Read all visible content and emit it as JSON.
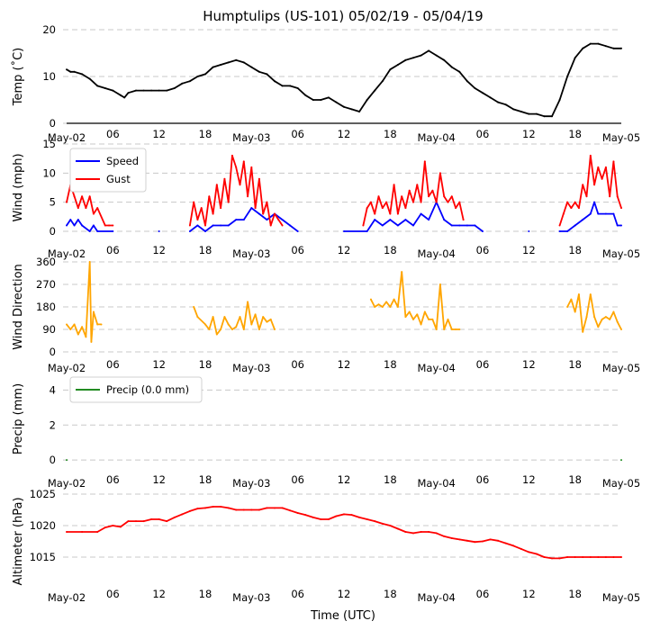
{
  "figure": {
    "title": "Humptulips (US-101) 05/02/19 - 05/04/19",
    "xlabel": "Time (UTC)"
  },
  "chart_data": [
    {
      "type": "line",
      "id": "temp",
      "ylabel": "Temp ($^\\circ$C)",
      "ylabel_display": "Temp (˚C)",
      "ylim": [
        0,
        20
      ],
      "yticks": [
        0,
        10,
        20
      ],
      "ytick_labels": [
        "0",
        "10",
        "20"
      ],
      "xlim_hours": [
        0,
        72
      ],
      "xticks_hours": [
        0,
        6,
        12,
        18,
        24,
        30,
        36,
        42,
        48,
        54,
        60,
        66,
        72
      ],
      "xtick_labels": [
        "May-02",
        "06",
        "12",
        "18",
        "May-03",
        "06",
        "12",
        "18",
        "May-04",
        "06",
        "12",
        "18",
        "May-05"
      ],
      "grid": true,
      "series": [
        {
          "name": "Temp",
          "color": "#000000",
          "x_hours": [
            0,
            0.5,
            1,
            2,
            3,
            4,
            5,
            6,
            7,
            7.5,
            8,
            9,
            10,
            11,
            12,
            13,
            14,
            15,
            16,
            17,
            18,
            19,
            20,
            21,
            22,
            23,
            24,
            25,
            26,
            27,
            28,
            29,
            30,
            31,
            32,
            33,
            34,
            35,
            36,
            37,
            38,
            39,
            40,
            41,
            42,
            43,
            44,
            45,
            46,
            47,
            48,
            49,
            50,
            51,
            52,
            53,
            54,
            55,
            56,
            57,
            58,
            59,
            60,
            61,
            62,
            63,
            64,
            65,
            66,
            67,
            68,
            69,
            70,
            71,
            72
          ],
          "values": [
            11.5,
            11,
            11,
            10.5,
            9.5,
            8,
            7.5,
            7,
            6,
            5.5,
            6.5,
            7,
            7,
            7,
            7,
            7,
            7.5,
            8.5,
            9,
            10,
            10.5,
            12,
            12.5,
            13,
            13.5,
            13,
            12,
            11,
            10.5,
            9,
            8,
            8,
            7.5,
            6,
            5,
            5,
            5.5,
            4.5,
            3.5,
            3,
            2.5,
            5,
            7,
            9,
            11.5,
            12.5,
            13.5,
            14,
            14.5,
            15.5,
            14.5,
            13.5,
            12,
            11,
            9,
            7.5,
            6.5,
            5.5,
            4.5,
            4,
            3,
            2.5,
            2,
            2,
            1.5,
            1.5,
            5,
            10,
            14,
            16,
            17,
            17,
            16.5,
            16,
            16
          ]
        }
      ]
    },
    {
      "type": "line",
      "id": "wind",
      "ylabel": "Wind (mph)",
      "ylim": [
        0,
        15
      ],
      "yticks": [
        0,
        5,
        10,
        15
      ],
      "ytick_labels": [
        "0",
        "5",
        "10",
        "15"
      ],
      "xlim_hours": [
        0,
        72
      ],
      "grid": true,
      "legend": {
        "placement": "top-left",
        "entries": [
          "Speed",
          "Gust"
        ]
      },
      "series": [
        {
          "name": "Speed",
          "color": "#0000ff",
          "x_hours": [
            0,
            0.5,
            1,
            1.5,
            2,
            3,
            3.5,
            4,
            6,
            12,
            16,
            17,
            18,
            19,
            20,
            21,
            22,
            23,
            24,
            25,
            26,
            27,
            28,
            29,
            30,
            36,
            39,
            40,
            41,
            42,
            43,
            44,
            45,
            46,
            47,
            48,
            49,
            50,
            51,
            52,
            53,
            54,
            60,
            64,
            65,
            66,
            67,
            68,
            68.5,
            69,
            70,
            71,
            71.5,
            72
          ],
          "values": [
            1,
            2,
            1,
            2,
            1,
            0,
            1,
            0,
            0,
            0,
            0,
            1,
            0,
            1,
            1,
            1,
            2,
            2,
            4,
            3,
            2,
            3,
            2,
            1,
            0,
            0,
            0,
            2,
            1,
            2,
            1,
            2,
            1,
            3,
            2,
            5,
            2,
            1,
            1,
            1,
            1,
            0,
            0,
            0,
            0,
            1,
            2,
            3,
            5,
            3,
            3,
            3,
            1,
            1
          ]
        },
        {
          "name": "Gust",
          "color": "#ff0000",
          "x_hours": [
            0,
            0.5,
            1,
            1.5,
            2,
            2.5,
            3,
            3.5,
            4,
            5,
            5.5,
            6,
            16,
            16.5,
            17,
            17.5,
            18,
            18.5,
            19,
            19.5,
            20,
            20.5,
            21,
            21.5,
            22,
            22.5,
            23,
            23.5,
            24,
            24.5,
            25,
            25.5,
            26,
            26.5,
            27,
            27.5,
            28,
            38.5,
            39,
            39.5,
            40,
            40.5,
            41,
            41.5,
            42,
            42.5,
            43,
            43.5,
            44,
            44.5,
            45,
            45.5,
            46,
            46.5,
            47,
            47.5,
            48,
            48.5,
            49,
            49.5,
            50,
            50.5,
            51,
            51.5,
            64,
            64.5,
            65,
            65.5,
            66,
            66.5,
            67,
            67.5,
            68,
            68.5,
            69,
            69.5,
            70,
            70.5,
            71,
            71.5,
            72
          ],
          "values": [
            5,
            8,
            6,
            4,
            6,
            4,
            6,
            3,
            4,
            1,
            1,
            1,
            1,
            5,
            2,
            4,
            1,
            6,
            3,
            8,
            4,
            9,
            5,
            13,
            11,
            8,
            12,
            6,
            11,
            4,
            9,
            3,
            5,
            1,
            3,
            2,
            1,
            1,
            4,
            5,
            3,
            6,
            4,
            5,
            3,
            8,
            3,
            6,
            4,
            7,
            5,
            8,
            5,
            12,
            6,
            7,
            5,
            10,
            6,
            5,
            6,
            4,
            5,
            2,
            1,
            3,
            5,
            4,
            5,
            4,
            8,
            6,
            13,
            8,
            11,
            9,
            11,
            6,
            12,
            6,
            4
          ]
        }
      ]
    },
    {
      "type": "line",
      "id": "direction",
      "ylabel": "Wind Direction",
      "ylim": [
        0,
        360
      ],
      "yticks": [
        0,
        90,
        180,
        270,
        360
      ],
      "ytick_labels": [
        "0",
        "90",
        "180",
        "270",
        "360"
      ],
      "xlim_hours": [
        0,
        72
      ],
      "grid": true,
      "series": [
        {
          "name": "Direction",
          "color": "#ffa500",
          "x_hours": [
            0,
            0.5,
            1,
            1.5,
            2,
            2.5,
            3,
            3.2,
            3.5,
            4,
            4.5,
            16.5,
            17,
            18,
            18.5,
            19,
            19.5,
            20,
            20.5,
            21,
            21.5,
            22,
            22.5,
            23,
            23.5,
            24,
            24.5,
            25,
            25.5,
            26,
            26.5,
            27,
            39.5,
            40,
            40.5,
            41,
            41.5,
            42,
            42.5,
            43,
            43.5,
            44,
            44.5,
            45,
            45.5,
            46,
            46.5,
            47,
            47.5,
            48,
            48.5,
            49,
            49.5,
            50,
            50.5,
            51,
            65,
            65.5,
            66,
            66.5,
            67,
            67.5,
            68,
            68.5,
            69,
            69.5,
            70,
            70.5,
            71,
            71.5,
            72
          ],
          "values": [
            110,
            90,
            110,
            70,
            100,
            60,
            360,
            40,
            160,
            110,
            110,
            180,
            140,
            110,
            90,
            140,
            70,
            90,
            140,
            110,
            90,
            100,
            140,
            90,
            200,
            110,
            150,
            90,
            140,
            120,
            130,
            90,
            210,
            180,
            190,
            180,
            200,
            180,
            210,
            180,
            320,
            140,
            160,
            130,
            150,
            110,
            160,
            130,
            130,
            90,
            270,
            90,
            130,
            90,
            90,
            90,
            180,
            210,
            160,
            230,
            80,
            140,
            230,
            140,
            100,
            130,
            140,
            130,
            160,
            120,
            90
          ]
        }
      ]
    },
    {
      "type": "line",
      "id": "precip",
      "ylabel": "Precip (mm)",
      "ylim": [
        -0.3,
        5
      ],
      "yticks": [
        0,
        2,
        4
      ],
      "ytick_labels": [
        "0",
        "2",
        "4"
      ],
      "xlim_hours": [
        0,
        72
      ],
      "grid": true,
      "legend": {
        "placement": "top-left",
        "entries": [
          "Precip (0.0 mm)"
        ]
      },
      "series": [
        {
          "name": "Precip (0.0 mm)",
          "color": "#228b22",
          "x_hours": [
            0,
            72
          ],
          "values": [
            0,
            0
          ]
        }
      ]
    },
    {
      "type": "line",
      "id": "altimeter",
      "ylabel": "Altimeter (hPa)",
      "ylim": [
        1010,
        1025
      ],
      "yticks": [
        1015,
        1020,
        1025
      ],
      "ytick_labels": [
        "1015",
        "1020",
        "1025"
      ],
      "xlim_hours": [
        0,
        72
      ],
      "grid": true,
      "series": [
        {
          "name": "Altimeter",
          "color": "#ff0000",
          "x_hours": [
            0,
            2,
            4,
            5,
            6,
            7,
            8,
            9,
            10,
            11,
            12,
            13,
            14,
            15,
            16,
            17,
            18,
            19,
            20,
            21,
            22,
            23,
            24,
            25,
            26,
            27,
            28,
            29,
            30,
            31,
            32,
            33,
            34,
            35,
            36,
            37,
            38,
            39,
            40,
            41,
            42,
            43,
            44,
            45,
            46,
            47,
            48,
            49,
            50,
            51,
            52,
            53,
            54,
            55,
            56,
            57,
            58,
            59,
            60,
            61,
            62,
            63,
            64,
            65,
            66,
            67,
            68,
            69,
            70,
            71,
            72
          ],
          "values": [
            1019,
            1019,
            1019,
            1019.7,
            1020,
            1019.8,
            1020.7,
            1020.7,
            1020.7,
            1021,
            1021,
            1020.7,
            1021.3,
            1021.8,
            1022.3,
            1022.7,
            1022.8,
            1023,
            1023,
            1022.8,
            1022.5,
            1022.5,
            1022.5,
            1022.5,
            1022.8,
            1022.8,
            1022.8,
            1022.4,
            1022,
            1021.7,
            1021.3,
            1021,
            1021,
            1021.5,
            1021.8,
            1021.7,
            1021.3,
            1021,
            1020.7,
            1020.3,
            1020,
            1019.5,
            1019,
            1018.8,
            1019,
            1019,
            1018.8,
            1018.3,
            1018,
            1017.8,
            1017.6,
            1017.4,
            1017.5,
            1017.8,
            1017.6,
            1017.2,
            1016.8,
            1016.3,
            1015.8,
            1015.5,
            1015,
            1014.8,
            1014.8,
            1015,
            1015,
            1015,
            1015,
            1015,
            1015,
            1015,
            1015
          ]
        }
      ]
    }
  ]
}
